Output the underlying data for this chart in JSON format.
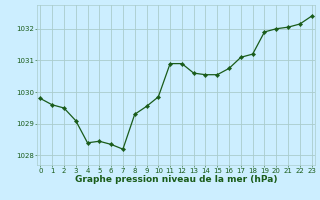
{
  "x": [
    0,
    1,
    2,
    3,
    4,
    5,
    6,
    7,
    8,
    9,
    10,
    11,
    12,
    13,
    14,
    15,
    16,
    17,
    18,
    19,
    20,
    21,
    22,
    23
  ],
  "y": [
    1029.8,
    1029.6,
    1029.5,
    1029.1,
    1028.4,
    1028.45,
    1028.35,
    1028.2,
    1029.3,
    1029.55,
    1029.85,
    1030.9,
    1030.9,
    1030.6,
    1030.55,
    1030.55,
    1030.75,
    1031.1,
    1031.2,
    1031.9,
    1032.0,
    1032.05,
    1032.15,
    1032.4
  ],
  "line_color": "#1a5c1a",
  "marker": "D",
  "markersize": 2.2,
  "linewidth": 0.9,
  "background_color": "#cceeff",
  "grid_color": "#aacccc",
  "ylabel_ticks": [
    1028,
    1029,
    1030,
    1031,
    1032
  ],
  "xticks": [
    0,
    1,
    2,
    3,
    4,
    5,
    6,
    7,
    8,
    9,
    10,
    11,
    12,
    13,
    14,
    15,
    16,
    17,
    18,
    19,
    20,
    21,
    22,
    23
  ],
  "ylim": [
    1027.7,
    1032.75
  ],
  "xlim": [
    -0.3,
    23.3
  ],
  "xlabel": "Graphe pression niveau de la mer (hPa)",
  "xlabel_fontsize": 6.5,
  "xlabel_color": "#1a5c1a",
  "tick_fontsize": 5.0,
  "tick_color": "#1a5c1a"
}
